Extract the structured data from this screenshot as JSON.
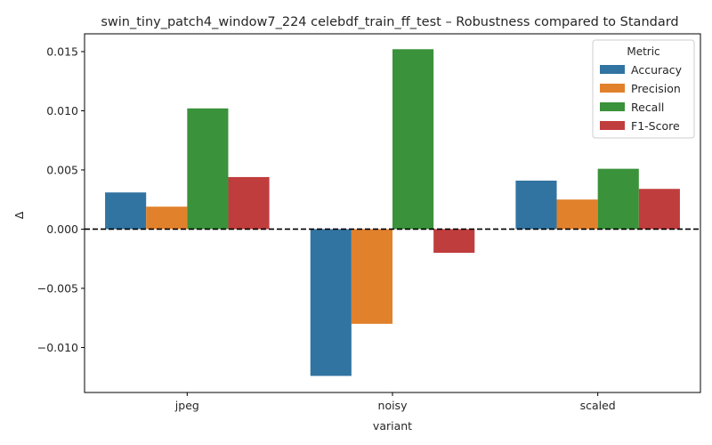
{
  "chart_data": {
    "type": "bar",
    "title": "swin_tiny_patch4_window7_224 celebdf_train_ff_test – Robustness compared to Standard",
    "xlabel": "variant",
    "ylabel": "Δ",
    "categories": [
      "jpeg",
      "noisy",
      "scaled"
    ],
    "series": [
      {
        "name": "Accuracy",
        "values": [
          0.0031,
          -0.0124,
          0.0041
        ],
        "color": "#3274a1"
      },
      {
        "name": "Precision",
        "values": [
          0.0019,
          -0.008,
          0.0025
        ],
        "color": "#e1812c"
      },
      {
        "name": "Recall",
        "values": [
          0.0102,
          0.0152,
          0.0051
        ],
        "color": "#3a923a"
      },
      {
        "name": "F1-Score",
        "values": [
          0.0044,
          -0.002,
          0.0034
        ],
        "color": "#c03d3e"
      }
    ],
    "ylim": [
      -0.0138,
      0.0165
    ],
    "yticks": [
      "0.015",
      "0.010",
      "0.005",
      "0.000",
      "−0.005",
      "−0.010"
    ],
    "ytick_values": [
      0.015,
      0.01,
      0.005,
      0.0,
      -0.005,
      -0.01
    ],
    "reference_line": 0,
    "grid": false,
    "legend": {
      "title": "Metric",
      "placement": "top-right"
    }
  }
}
